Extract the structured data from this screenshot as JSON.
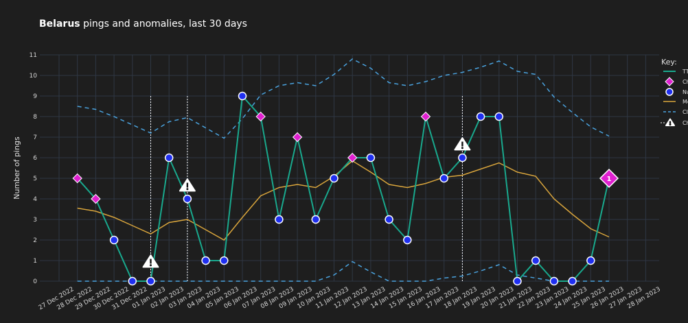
{
  "title": {
    "country": "Belarus",
    "rest": "pings and anomalies, last 30 days"
  },
  "colors": {
    "background": "#1e1e1e",
    "grid": "#2f3744",
    "line": "#19a98e",
    "median": "#d9a53c",
    "ci": "#4aa3df",
    "changepoint": "#e020d0",
    "null_marker": "#1f2ff0",
    "anomaly_line": "#ffffff"
  },
  "chart_data": {
    "type": "line",
    "ylabel": "Number of pings",
    "ylim": [
      0,
      11
    ],
    "yticks": [
      0,
      1,
      2,
      3,
      4,
      5,
      6,
      7,
      8,
      9,
      10,
      11
    ],
    "x_categories": [
      "27 Dec 2022",
      "28 Dec 2022",
      "29 Dec 2022",
      "30 Dec 2022",
      "31 Dec 2022",
      "01 Jan 2023",
      "02 Jan 2023",
      "03 Jan 2023",
      "04 Jan 2023",
      "05 Jan 2023",
      "06 Jan 2023",
      "07 Jan 2023",
      "08 Jan 2023",
      "09 Jan 2023",
      "10 Jan 2023",
      "11 Jan 2023",
      "12 Jan 2023",
      "13 Jan 2023",
      "14 Jan 2023",
      "15 Jan 2023",
      "16 Jan 2023",
      "17 Jan 2023",
      "18 Jan 2023",
      "19 Jan 2023",
      "20 Jan 2023",
      "21 Jan 2023",
      "22 Jan 2023",
      "23 Jan 2023",
      "24 Jan 2023",
      "25 Jan 2023",
      "26 Jan 2023",
      "27 Jan 2023",
      "28 Jan 2023"
    ],
    "series": [
      {
        "name": "TTL",
        "values": [
          5,
          4,
          2,
          0,
          0,
          6,
          4,
          1,
          1,
          9,
          8,
          3,
          7,
          3,
          5,
          6,
          6,
          3,
          2,
          8,
          5,
          6,
          8,
          8,
          0,
          1,
          0,
          0,
          1,
          5
        ],
        "start_index": 1
      },
      {
        "name": "Median",
        "values": [
          3.55,
          3.4,
          3.1,
          2.7,
          2.3,
          2.85,
          3.0,
          2.5,
          2.0,
          3.1,
          4.15,
          4.55,
          4.7,
          4.55,
          5.1,
          5.85,
          5.3,
          4.7,
          4.55,
          4.75,
          5.05,
          5.15,
          5.45,
          5.75,
          5.3,
          5.1,
          4.0,
          3.25,
          2.55,
          2.15
        ],
        "start_index": 1
      },
      {
        "name": "CI upper",
        "values": [
          8.5,
          8.35,
          8.0,
          7.6,
          7.2,
          7.75,
          7.95,
          7.45,
          6.95,
          7.9,
          9.05,
          9.5,
          9.65,
          9.5,
          10.05,
          10.8,
          10.35,
          9.65,
          9.5,
          9.7,
          10.0,
          10.15,
          10.4,
          10.7,
          10.2,
          10.05,
          8.95,
          8.2,
          7.5,
          7.05
        ],
        "start_index": 1
      },
      {
        "name": "CI lower",
        "values": [
          0,
          0,
          0,
          0,
          0,
          0,
          0,
          0,
          0,
          0,
          0,
          0,
          0,
          0,
          0.3,
          0.95,
          0.45,
          0,
          0,
          0,
          0.15,
          0.25,
          0.5,
          0.8,
          0.3,
          0.15,
          0,
          0,
          0,
          0
        ],
        "start_index": 1
      }
    ],
    "changepoint_indices": [
      1,
      2,
      11,
      13,
      16,
      20
    ],
    "null_indices": [
      3,
      4,
      5,
      6,
      7,
      8,
      9,
      10,
      12,
      14,
      15,
      17,
      18,
      19,
      21,
      22,
      23,
      24,
      25,
      26,
      27,
      28,
      29
    ],
    "large_marker": {
      "index": 30,
      "label": "1"
    },
    "anomalies": [
      {
        "index": 5
      },
      {
        "index": 7
      },
      {
        "index": 22
      }
    ],
    "legend": {
      "title": "Key:",
      "entries": [
        "TTL",
        "Changepoint",
        "Null",
        "Median",
        "CI",
        "Change"
      ]
    }
  }
}
